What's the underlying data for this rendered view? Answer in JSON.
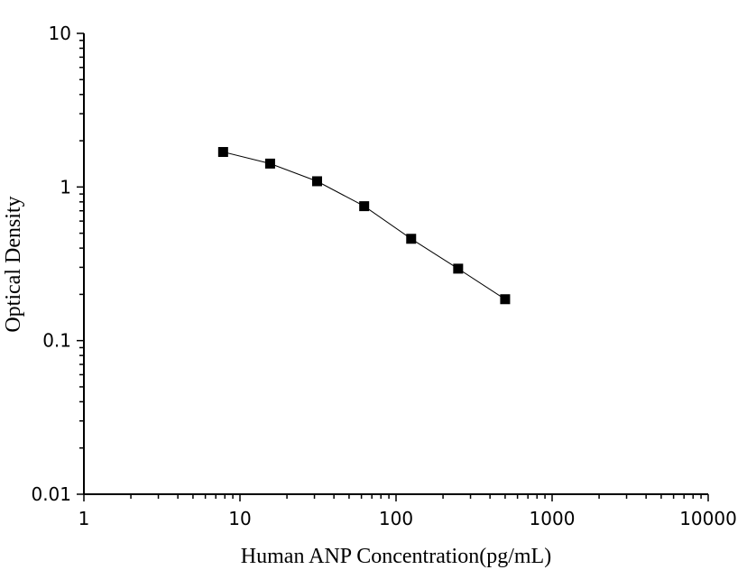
{
  "chart_data": {
    "type": "scatter",
    "xlabel": "Human ANP Concentration(pg/mL)",
    "ylabel": "Optical Density",
    "x_scale": "log",
    "y_scale": "log",
    "xlim": [
      1,
      10000
    ],
    "ylim": [
      0.01,
      10
    ],
    "x_ticks": [
      "1",
      "10",
      "100",
      "1000",
      "10000"
    ],
    "y_ticks": [
      "0.01",
      "0.1",
      "1",
      "10"
    ],
    "grid": false,
    "series": [
      {
        "marker": "square",
        "color": "#000000",
        "connected": true,
        "x": [
          7.8,
          15.6,
          31.2,
          62.5,
          125,
          250,
          500
        ],
        "y": [
          1.69,
          1.42,
          1.09,
          0.75,
          0.46,
          0.294,
          0.186
        ]
      }
    ]
  }
}
